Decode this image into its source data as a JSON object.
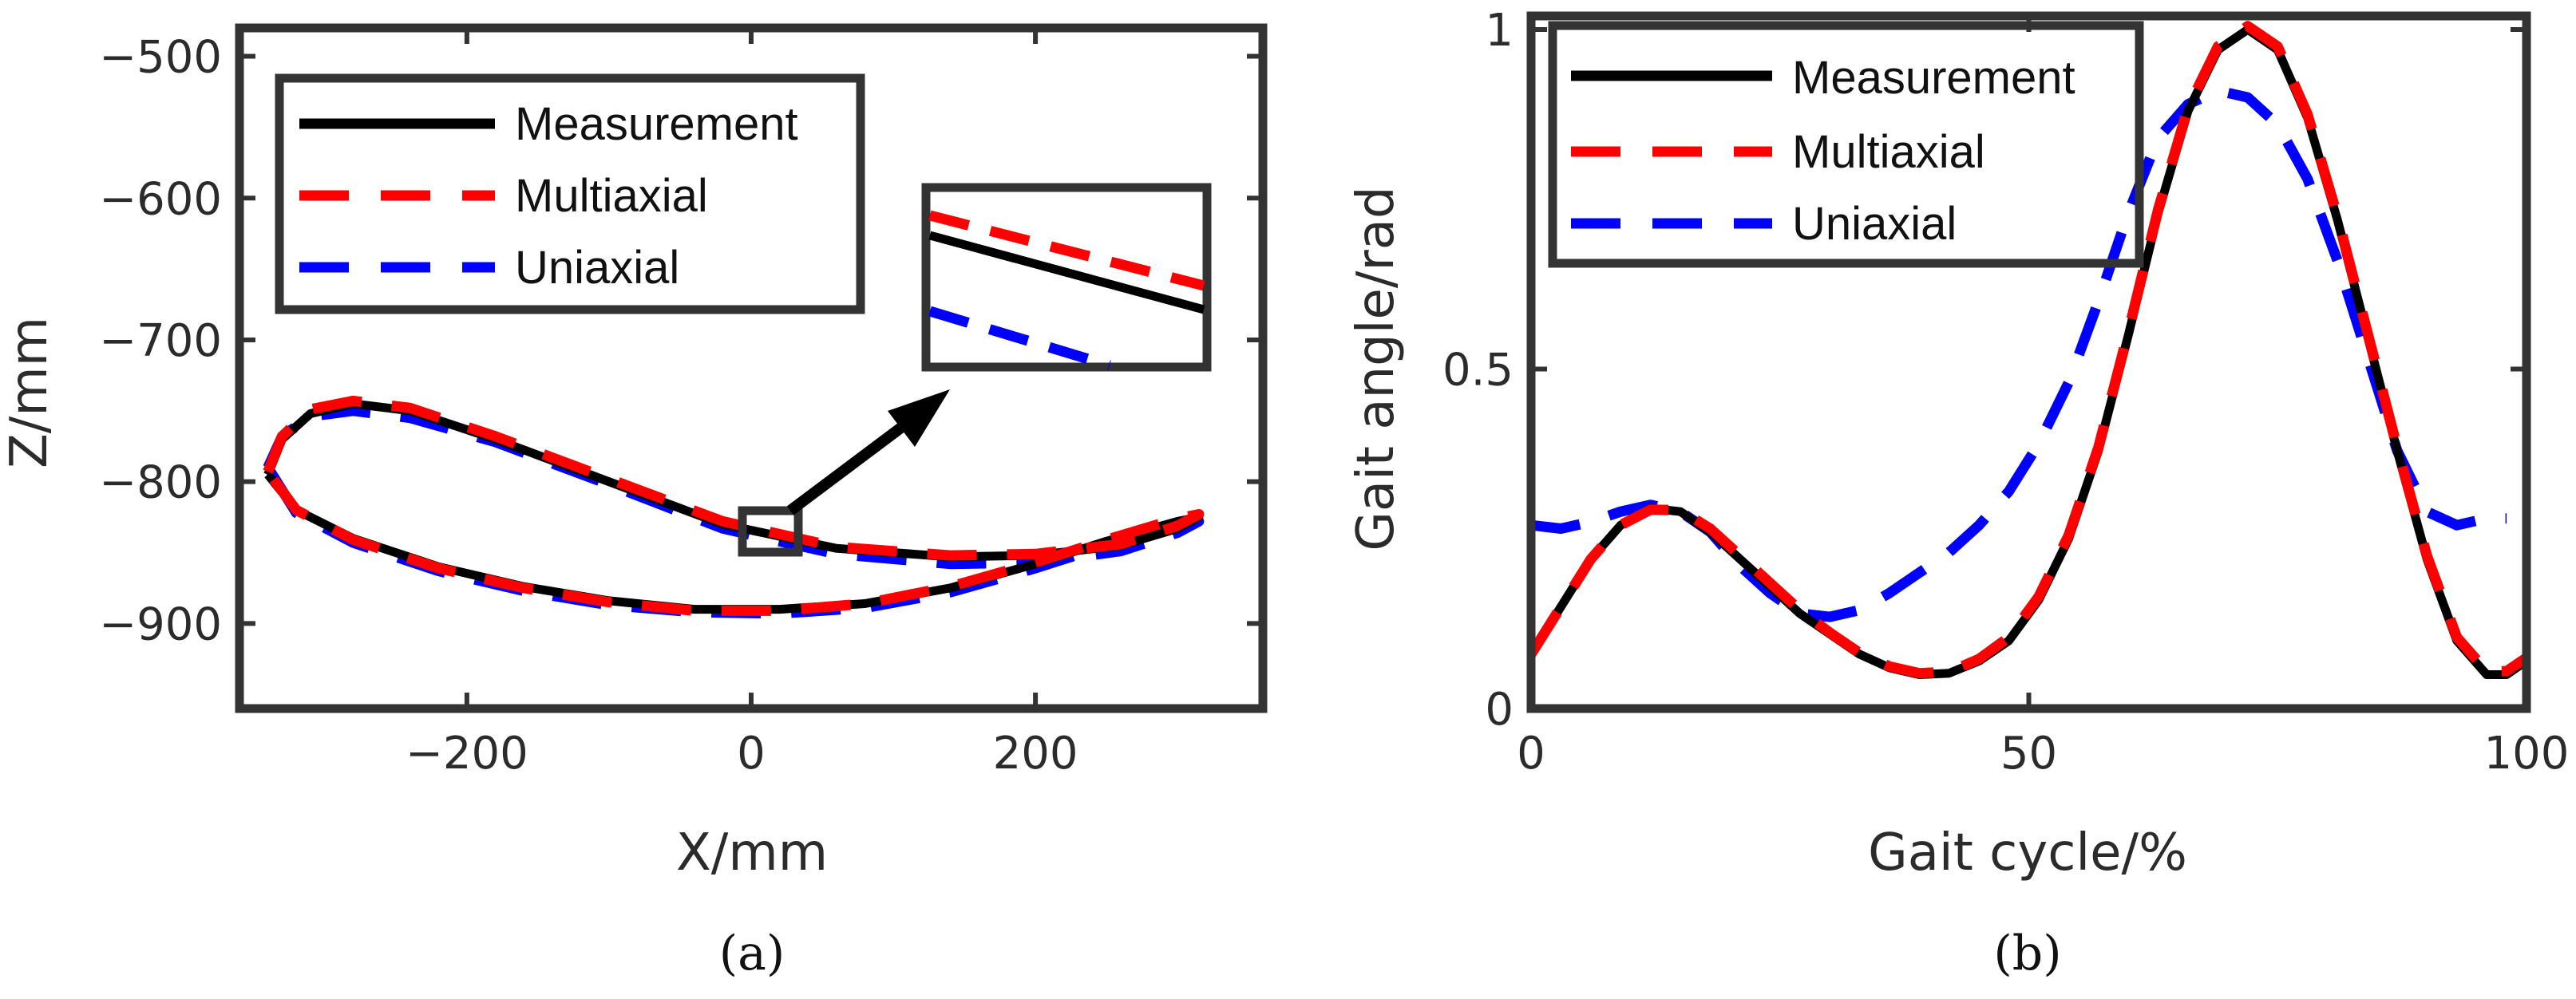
{
  "colors": {
    "measurement": "#000000",
    "multiaxial": "#ff0000",
    "uniaxial": "#0000ff",
    "axis": "#333333"
  },
  "chart_data": [
    {
      "type": "line",
      "panel": "(a)",
      "title": "",
      "xlabel": "X/mm",
      "ylabel": "Z/mm",
      "xlim": [
        -360,
        360
      ],
      "ylim": [
        -960,
        -480
      ],
      "xticks": [
        -200,
        0,
        200
      ],
      "yticks": [
        -500,
        -600,
        -700,
        -800,
        -900
      ],
      "xtick_labels": [
        "−200",
        "0",
        "200"
      ],
      "ytick_labels": [
        "−500",
        "−600",
        "−700",
        "−800",
        "−900"
      ],
      "legend": [
        "Measurement",
        "Multiaxial",
        "Uniaxial"
      ],
      "legend_position": "top-left",
      "inset": "magnified view around (0, -830)",
      "series": [
        {
          "name": "Measurement",
          "style": "solid",
          "x": [
            -340,
            -330,
            -310,
            -280,
            -240,
            -180,
            -100,
            -20,
            60,
            140,
            200,
            260,
            300,
            315,
            300,
            250,
            200,
            140,
            80,
            20,
            -40,
            -100,
            -160,
            -220,
            -280,
            -320,
            -340
          ],
          "y": [
            -795,
            -770,
            -752,
            -745,
            -750,
            -770,
            -800,
            -830,
            -847,
            -853,
            -852,
            -845,
            -833,
            -825,
            -828,
            -842,
            -858,
            -875,
            -886,
            -890,
            -890,
            -884,
            -874,
            -860,
            -840,
            -820,
            -795
          ]
        },
        {
          "name": "Multiaxial",
          "style": "dashed",
          "x": [
            -340,
            -330,
            -310,
            -280,
            -240,
            -180,
            -100,
            -20,
            60,
            140,
            200,
            260,
            300,
            315,
            300,
            250,
            200,
            140,
            80,
            20,
            -40,
            -100,
            -160,
            -220,
            -280,
            -320,
            -340
          ],
          "y": [
            -793,
            -768,
            -749,
            -743,
            -748,
            -768,
            -798,
            -828,
            -846,
            -852,
            -851,
            -844,
            -831,
            -823,
            -826,
            -841,
            -857,
            -874,
            -886,
            -891,
            -891,
            -885,
            -875,
            -861,
            -841,
            -820,
            -793
          ]
        },
        {
          "name": "Uniaxial",
          "style": "dashed",
          "x": [
            -340,
            -330,
            -310,
            -280,
            -240,
            -180,
            -100,
            -20,
            60,
            140,
            200,
            260,
            300,
            315,
            300,
            250,
            200,
            140,
            80,
            20,
            -40,
            -100,
            -160,
            -220,
            -280,
            -320,
            -340
          ],
          "y": [
            -790,
            -768,
            -754,
            -750,
            -755,
            -772,
            -802,
            -833,
            -851,
            -858,
            -857,
            -849,
            -836,
            -828,
            -831,
            -845,
            -861,
            -878,
            -889,
            -893,
            -892,
            -887,
            -877,
            -863,
            -843,
            -822,
            -790
          ]
        }
      ]
    },
    {
      "type": "line",
      "panel": "(b)",
      "title": "",
      "xlabel": "Gait cycle/%",
      "ylabel": "Gait angle/rad",
      "xlim": [
        0,
        100
      ],
      "ylim": [
        0,
        1.02
      ],
      "xticks": [
        0,
        50,
        100
      ],
      "yticks": [
        0,
        0.5,
        1
      ],
      "xtick_labels": [
        "0",
        "50",
        "100"
      ],
      "ytick_labels": [
        "0",
        "0.5",
        "1"
      ],
      "legend": [
        "Measurement",
        "Multiaxial",
        "Uniaxial"
      ],
      "legend_position": "top-left",
      "series": [
        {
          "name": "Measurement",
          "style": "solid",
          "x": [
            0,
            3,
            6,
            9,
            12,
            15,
            18,
            21,
            24,
            27,
            30,
            33,
            36,
            39,
            42,
            45,
            48,
            51,
            54,
            57,
            60,
            63,
            66,
            69,
            72,
            75,
            78,
            81,
            84,
            87,
            90,
            93,
            96,
            98,
            100
          ],
          "y": [
            0.08,
            0.15,
            0.22,
            0.27,
            0.295,
            0.29,
            0.26,
            0.22,
            0.18,
            0.14,
            0.11,
            0.08,
            0.06,
            0.05,
            0.052,
            0.07,
            0.1,
            0.16,
            0.25,
            0.38,
            0.55,
            0.73,
            0.88,
            0.97,
            1.0,
            0.97,
            0.87,
            0.72,
            0.55,
            0.38,
            0.22,
            0.1,
            0.05,
            0.05,
            0.07
          ]
        },
        {
          "name": "Multiaxial",
          "style": "dashed",
          "x": [
            0,
            3,
            6,
            9,
            12,
            15,
            18,
            21,
            24,
            27,
            30,
            33,
            36,
            39,
            42,
            45,
            48,
            51,
            54,
            57,
            60,
            63,
            66,
            69,
            72,
            75,
            78,
            81,
            84,
            87,
            90,
            93,
            96,
            98,
            100
          ],
          "y": [
            0.08,
            0.15,
            0.22,
            0.27,
            0.293,
            0.292,
            0.265,
            0.225,
            0.185,
            0.145,
            0.112,
            0.082,
            0.062,
            0.052,
            0.054,
            0.073,
            0.105,
            0.165,
            0.255,
            0.385,
            0.555,
            0.735,
            0.885,
            0.975,
            1.005,
            0.975,
            0.875,
            0.725,
            0.555,
            0.385,
            0.225,
            0.105,
            0.055,
            0.055,
            0.075
          ]
        },
        {
          "name": "Uniaxial",
          "style": "dashed",
          "x": [
            0,
            3,
            6,
            9,
            12,
            15,
            18,
            21,
            24,
            27,
            30,
            33,
            36,
            39,
            42,
            45,
            48,
            51,
            54,
            57,
            60,
            63,
            66,
            69,
            72,
            75,
            78,
            81,
            84,
            87,
            90,
            93,
            96,
            98
          ],
          "y": [
            0.27,
            0.265,
            0.275,
            0.29,
            0.3,
            0.29,
            0.26,
            0.21,
            0.17,
            0.14,
            0.135,
            0.145,
            0.17,
            0.2,
            0.23,
            0.27,
            0.32,
            0.39,
            0.48,
            0.6,
            0.73,
            0.84,
            0.89,
            0.91,
            0.9,
            0.86,
            0.78,
            0.66,
            0.52,
            0.38,
            0.29,
            0.27,
            0.28,
            0.28
          ]
        }
      ]
    }
  ]
}
